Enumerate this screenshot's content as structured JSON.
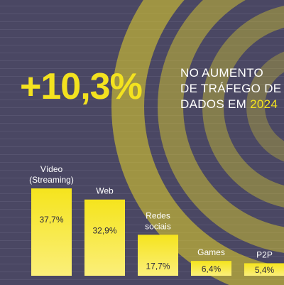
{
  "headline": {
    "stat": "+10,3%",
    "line1": "NO AUMENTO",
    "line2": "DE TRÁFEGO DE",
    "line3_prefix": "DADOS EM",
    "line3_year": "2024"
  },
  "colors": {
    "background": "#4a4763",
    "accent": "#f3e21f",
    "text": "#ffffff",
    "label_dark": "#2d2a3c"
  },
  "chart_data": {
    "type": "bar",
    "categories": [
      [
        "Vídeo",
        "(Streaming)"
      ],
      [
        "Web"
      ],
      [
        "Redes",
        "sociais"
      ],
      [
        "Games"
      ],
      [
        "P2P"
      ]
    ],
    "values": [
      37.7,
      32.9,
      17.7,
      6.4,
      5.4
    ],
    "value_labels": [
      "37,7%",
      "32,9%",
      "17,7%",
      "6,4%",
      "5,4%"
    ],
    "unit": "%"
  }
}
